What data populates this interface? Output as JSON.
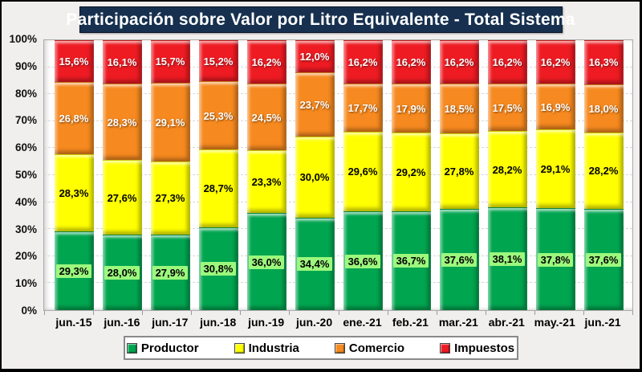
{
  "title": "Participación sobre Valor por Litro Equivalente - Total Sistema",
  "chart_data": {
    "type": "bar",
    "stacked": true,
    "title": "Participación sobre Valor por Litro Equivalente - Total Sistema",
    "xlabel": "",
    "ylabel": "",
    "ylim": [
      0,
      100
    ],
    "grid": true,
    "legend_position": "bottom",
    "y_ticks": [
      "100%",
      "90%",
      "80%",
      "70%",
      "60%",
      "50%",
      "40%",
      "30%",
      "20%",
      "10%",
      "0%"
    ],
    "categories": [
      "jun.-15",
      "jun.-16",
      "jun.-17",
      "jun.-18",
      "jun.-19",
      "jun.-20",
      "ene.-21",
      "feb.-21",
      "mar.-21",
      "abr.-21",
      "may.-21",
      "jun.-21"
    ],
    "series": [
      {
        "name": "Productor",
        "color": "#00A550",
        "label_color": "#000000",
        "label_chip_color": "#9CF87D",
        "values": [
          29.3,
          28.0,
          27.9,
          30.8,
          36.0,
          34.4,
          36.6,
          36.7,
          37.6,
          38.1,
          37.8,
          37.6
        ],
        "labels": [
          "29,3%",
          "28,0%",
          "27,9%",
          "30,8%",
          "36,0%",
          "34,4%",
          "36,6%",
          "36,7%",
          "37,6%",
          "38,1%",
          "37,8%",
          "37,6%"
        ]
      },
      {
        "name": "Industria",
        "color": "#FFFF00",
        "label_color": "#000000",
        "values": [
          28.3,
          27.6,
          27.3,
          28.7,
          23.3,
          30.0,
          29.6,
          29.2,
          27.8,
          28.2,
          29.1,
          28.2
        ],
        "labels": [
          "28,3%",
          "27,6%",
          "27,3%",
          "28,7%",
          "23,3%",
          "30,0%",
          "29,6%",
          "29,2%",
          "27,8%",
          "28,2%",
          "29,1%",
          "28,2%"
        ]
      },
      {
        "name": "Comercio",
        "color": "#F6891F",
        "label_color": "#FFFFFF",
        "values": [
          26.8,
          28.3,
          29.1,
          25.3,
          24.5,
          23.7,
          17.7,
          17.9,
          18.5,
          17.5,
          16.9,
          18.0
        ],
        "labels": [
          "26,8%",
          "28,3%",
          "29,1%",
          "25,3%",
          "24,5%",
          "23,7%",
          "17,7%",
          "17,9%",
          "18,5%",
          "17,5%",
          "16,9%",
          "18,0%"
        ]
      },
      {
        "name": "Impuestos",
        "color": "#EE1B23",
        "label_color": "#FFFFFF",
        "values": [
          15.6,
          16.1,
          15.7,
          15.2,
          16.2,
          12.0,
          16.2,
          16.2,
          16.2,
          16.2,
          16.2,
          16.3
        ],
        "labels": [
          "15,6%",
          "16,1%",
          "15,7%",
          "15,2%",
          "16,2%",
          "12,0%",
          "16,2%",
          "16,2%",
          "16,2%",
          "16,2%",
          "16,2%",
          "16,3%"
        ]
      }
    ],
    "legend": [
      "Productor",
      "Industria",
      "Comercio",
      "Impuestos"
    ],
    "colors": {
      "title_background": "#17304F",
      "title_text": "#FFFFFF",
      "page_background": "#F1EFEE",
      "plot_background": "#FFFFFF"
    }
  }
}
